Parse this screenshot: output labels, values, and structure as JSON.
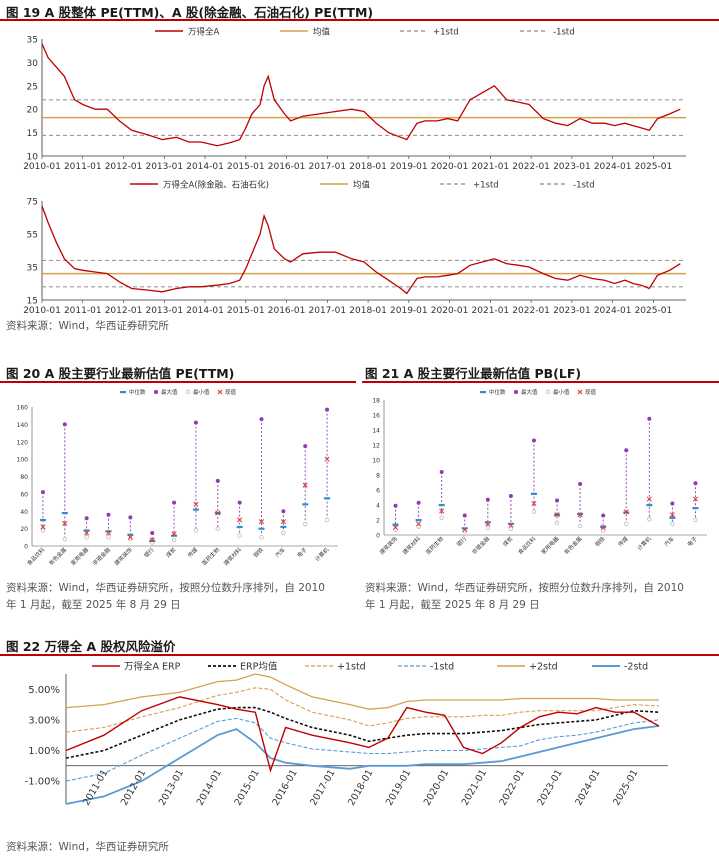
{
  "fig19": {
    "title": "图 19 A 股整体 PE(TTM)、A 股(除金融、石油石化) PE(TTM)",
    "source": "资料来源：Wind，华西证券研究所"
  },
  "fig20": {
    "title": "图 20 A 股主要行业最新估值 PE(TTM)",
    "source_line1": "资料来源：Wind，华西证券研究所，按照分位数升序排列，自 2010",
    "source_line2": "年 1 月起，截至 2025 年 8 月 29 日"
  },
  "fig21": {
    "title": "图 21 A 股主要行业最新估值 PB(LF)",
    "source_line1": "资料来源：Wind，华西证券研究所，按照分位数升序排列，自 2010",
    "source_line2": "年 1 月起，截至 2025 年 8 月 29 日"
  },
  "fig22": {
    "title": "图 22 万得全 A 股权风险溢价",
    "source": "资料来源：Wind，华西证券研究所"
  },
  "colors": {
    "red": "#c00000",
    "gold": "#d6a04f",
    "gray": "#9a9a9a",
    "black": "#111111",
    "lightblue": "#5b9bd5",
    "blue": "#2e75b6",
    "median": "#2e8fd0",
    "maxv": "#8e3bb5",
    "minv": "#bbbbbb",
    "cur": "#e03030"
  },
  "chart_data": [
    {
      "type": "line",
      "legend": [
        "万得全A",
        "均值",
        "+1std",
        "-1std"
      ],
      "x_ticks": [
        "2010-01",
        "2011-01",
        "2012-01",
        "2013-01",
        "2014-01",
        "2015-01",
        "2016-01",
        "2017-01",
        "2018-01",
        "2019-01",
        "2020-01",
        "2021-01",
        "2022-01",
        "2023-01",
        "2024-01",
        "2025-01"
      ],
      "ylim": [
        10,
        35
      ],
      "y_ticks": [
        10,
        15,
        20,
        25,
        30,
        35
      ],
      "mean": 18.2,
      "plus1std": 22.0,
      "minus1std": 14.4,
      "series": [
        {
          "name": "万得全A",
          "x": [
            2010.0,
            2010.15,
            2010.35,
            2010.55,
            2010.8,
            2011.0,
            2011.3,
            2011.6,
            2011.9,
            2012.2,
            2012.6,
            2012.95,
            2013.3,
            2013.6,
            2013.9,
            2014.3,
            2014.6,
            2014.85,
            2015.0,
            2015.15,
            2015.35,
            2015.45,
            2015.55,
            2015.7,
            2015.95,
            2016.1,
            2016.4,
            2016.8,
            2017.2,
            2017.6,
            2017.9,
            2018.2,
            2018.5,
            2018.8,
            2018.95,
            2019.2,
            2019.4,
            2019.7,
            2019.95,
            2020.2,
            2020.5,
            2020.8,
            2021.1,
            2021.4,
            2021.7,
            2021.95,
            2022.3,
            2022.6,
            2022.9,
            2023.2,
            2023.5,
            2023.8,
            2024.05,
            2024.3,
            2024.5,
            2024.7,
            2024.9,
            2025.1,
            2025.4,
            2025.66
          ],
          "y": [
            34,
            31,
            29,
            27,
            22,
            21,
            20,
            20,
            17.5,
            15.5,
            14.5,
            13.5,
            14,
            13,
            13,
            12.2,
            12.8,
            13.5,
            16,
            19,
            21,
            25,
            27,
            22,
            19,
            17.5,
            18.5,
            19,
            19.5,
            20,
            19.5,
            17,
            15,
            14,
            13.5,
            17,
            17.5,
            17.5,
            18,
            17.5,
            22,
            23.5,
            25,
            22,
            21.5,
            21,
            18,
            17,
            16.5,
            18,
            17,
            17,
            16.5,
            17,
            16.5,
            16,
            15.5,
            18,
            19,
            20
          ]
        }
      ]
    },
    {
      "type": "line",
      "legend": [
        "万得全A(除金融、石油石化)",
        "均值",
        "+1std",
        "-1std"
      ],
      "x_ticks": [
        "2010-01",
        "2011-01",
        "2012-01",
        "2013-01",
        "2014-01",
        "2015-01",
        "2016-01",
        "2017-01",
        "2018-01",
        "2019-01",
        "2020-01",
        "2021-01",
        "2022-01",
        "2023-01",
        "2024-01",
        "2025-01"
      ],
      "ylim": [
        15,
        75
      ],
      "y_ticks": [
        15,
        35,
        55,
        75
      ],
      "mean": 31.0,
      "plus1std": 39.0,
      "minus1std": 23.0,
      "series": [
        {
          "name": "万得全A(除金融、石油石化)",
          "x": [
            2010.0,
            2010.15,
            2010.35,
            2010.55,
            2010.8,
            2011.0,
            2011.3,
            2011.6,
            2011.9,
            2012.2,
            2012.6,
            2012.95,
            2013.3,
            2013.6,
            2013.9,
            2014.3,
            2014.6,
            2014.85,
            2015.0,
            2015.15,
            2015.35,
            2015.45,
            2015.55,
            2015.7,
            2015.95,
            2016.1,
            2016.4,
            2016.8,
            2017.2,
            2017.6,
            2017.9,
            2018.2,
            2018.5,
            2018.8,
            2018.95,
            2019.2,
            2019.4,
            2019.7,
            2019.95,
            2020.2,
            2020.5,
            2020.8,
            2021.1,
            2021.4,
            2021.7,
            2021.95,
            2022.3,
            2022.6,
            2022.9,
            2023.2,
            2023.5,
            2023.8,
            2024.05,
            2024.3,
            2024.5,
            2024.7,
            2024.9,
            2025.1,
            2025.4,
            2025.66
          ],
          "y": [
            72,
            62,
            50,
            40,
            34,
            33,
            32,
            31,
            26,
            22,
            21,
            20,
            22,
            23,
            23,
            24,
            25,
            27,
            34,
            43,
            55,
            66,
            60,
            46,
            40,
            38,
            43,
            44,
            44,
            40,
            38,
            32,
            27,
            22,
            19,
            28,
            29,
            29,
            30,
            31,
            36,
            38,
            40,
            37,
            36,
            35,
            31,
            28,
            27,
            30,
            28,
            27,
            25,
            27,
            25,
            24,
            22,
            30,
            33,
            37
          ]
        }
      ]
    },
    {
      "type": "scatter",
      "legend": [
        "中位数",
        "最大值",
        "最小值",
        "现值"
      ],
      "ylim": [
        0,
        160
      ],
      "y_ticks": [
        0,
        20,
        40,
        60,
        80,
        100,
        120,
        140,
        160
      ],
      "categories": [
        "食品饮料",
        "有色金属",
        "家用电器",
        "非银金融",
        "建筑装饰",
        "银行",
        "煤炭",
        "传媒",
        "医药生物",
        "建筑材料",
        "钢铁",
        "汽车",
        "电子",
        "计算机"
      ],
      "median": [
        30,
        38,
        18,
        17,
        13,
        6,
        12,
        42,
        38,
        22,
        20,
        22,
        48,
        55
      ],
      "max": [
        62,
        140,
        32,
        36,
        33,
        15,
        50,
        142,
        75,
        50,
        146,
        40,
        115,
        157
      ],
      "min": [
        18,
        8,
        10,
        10,
        8,
        4,
        7,
        18,
        20,
        12,
        10,
        15,
        25,
        30
      ],
      "current": [
        22,
        26,
        15,
        15,
        10,
        7,
        14,
        48,
        38,
        30,
        28,
        28,
        70,
        100
      ]
    },
    {
      "type": "scatter",
      "legend": [
        "中位数",
        "最大值",
        "最小值",
        "现值"
      ],
      "ylim": [
        0,
        18
      ],
      "y_ticks": [
        0,
        2,
        4,
        6,
        8,
        10,
        12,
        14,
        16,
        18
      ],
      "categories": [
        "建筑装饰",
        "建筑材料",
        "医药生物",
        "银行",
        "非银金融",
        "煤炭",
        "食品饮料",
        "家用电器",
        "有色金属",
        "钢铁",
        "传媒",
        "计算机",
        "汽车",
        "电子"
      ],
      "median": [
        1.4,
        2.0,
        4.0,
        0.9,
        1.7,
        1.5,
        5.5,
        2.7,
        2.8,
        1.1,
        3.0,
        4.0,
        2.3,
        3.6
      ],
      "max": [
        3.9,
        4.3,
        8.4,
        2.6,
        4.7,
        5.2,
        12.6,
        4.6,
        6.8,
        2.6,
        11.3,
        15.5,
        4.2,
        6.9
      ],
      "min": [
        0.7,
        1.1,
        2.3,
        0.5,
        0.9,
        0.8,
        3.1,
        1.6,
        1.2,
        0.6,
        1.5,
        2.1,
        1.5,
        2.0
      ],
      "current": [
        1.0,
        1.5,
        3.2,
        0.7,
        1.5,
        1.3,
        4.2,
        2.7,
        2.7,
        1.0,
        3.1,
        4.8,
        2.7,
        4.8
      ]
    },
    {
      "type": "line",
      "legend": [
        "万得全A ERP",
        "ERP均值",
        "+1std",
        "-1std",
        "+2std",
        "-2std"
      ],
      "x_ticks": [
        "2011-01",
        "2012-01",
        "2013-01",
        "2014-01",
        "2015-01",
        "2016-01",
        "2017-01",
        "2018-01",
        "2019-01",
        "2020-01",
        "2021-01",
        "2022-01",
        "2023-01",
        "2024-01",
        "2025-01"
      ],
      "y_ticks": [
        "5.00%",
        "3.00%",
        "1.00%",
        "-1.00%"
      ],
      "ylim": [
        -2.5,
        6.0
      ],
      "x": [
        2010.0,
        2011.0,
        2012.0,
        2013.0,
        2014.0,
        2014.5,
        2015.0,
        2015.4,
        2015.8,
        2016.5,
        2017.5,
        2018.0,
        2018.5,
        2019.0,
        2019.5,
        2020.0,
        2020.5,
        2021.0,
        2021.5,
        2022.0,
        2022.5,
        2023.0,
        2023.5,
        2024.0,
        2024.5,
        2025.0,
        2025.66
      ],
      "series": [
        {
          "name": "万得全A ERP",
          "values": [
            1.0,
            2.0,
            3.6,
            4.5,
            4.0,
            3.7,
            3.5,
            -0.3,
            2.5,
            2.0,
            1.5,
            1.2,
            1.8,
            3.8,
            3.5,
            3.3,
            1.2,
            0.8,
            1.5,
            2.5,
            3.2,
            3.5,
            3.4,
            3.8,
            3.5,
            3.5,
            2.6
          ]
        },
        {
          "name": "ERP均值",
          "values": [
            0.5,
            1.0,
            2.0,
            3.0,
            3.7,
            3.8,
            3.8,
            3.5,
            3.1,
            2.5,
            2.0,
            1.6,
            1.8,
            2.0,
            2.1,
            2.1,
            2.1,
            2.2,
            2.3,
            2.5,
            2.7,
            2.8,
            2.9,
            3.0,
            3.3,
            3.6,
            3.5
          ]
        },
        {
          "name": "+1std",
          "values": [
            2.2,
            2.5,
            3.2,
            3.8,
            4.6,
            4.8,
            5.1,
            5.0,
            4.3,
            3.5,
            3.0,
            2.6,
            2.8,
            3.1,
            3.2,
            3.2,
            3.2,
            3.3,
            3.3,
            3.5,
            3.6,
            3.6,
            3.6,
            3.6,
            3.8,
            4.0,
            3.9
          ]
        },
        {
          "name": "-1std",
          "values": [
            -1.0,
            -0.5,
            0.7,
            1.8,
            2.9,
            3.1,
            2.8,
            1.8,
            1.5,
            1.1,
            0.9,
            0.8,
            0.8,
            0.9,
            1.0,
            1.0,
            1.0,
            1.1,
            1.2,
            1.3,
            1.7,
            1.9,
            2.0,
            2.2,
            2.5,
            2.8,
            3.0
          ]
        },
        {
          "name": "+2std",
          "values": [
            3.8,
            4.0,
            4.5,
            4.8,
            5.5,
            5.6,
            6.0,
            5.8,
            5.3,
            4.5,
            4.0,
            3.7,
            3.8,
            4.2,
            4.3,
            4.3,
            4.3,
            4.3,
            4.3,
            4.4,
            4.4,
            4.4,
            4.4,
            4.4,
            4.3,
            4.3,
            4.3
          ]
        },
        {
          "name": "-2std",
          "values": [
            -2.5,
            -2.0,
            -1.0,
            0.5,
            2.0,
            2.4,
            1.5,
            0.5,
            0.2,
            0.0,
            -0.2,
            0.0,
            0.0,
            0.0,
            0.1,
            0.1,
            0.1,
            0.2,
            0.3,
            0.6,
            0.9,
            1.2,
            1.5,
            1.8,
            2.1,
            2.4,
            2.6
          ]
        }
      ]
    }
  ]
}
